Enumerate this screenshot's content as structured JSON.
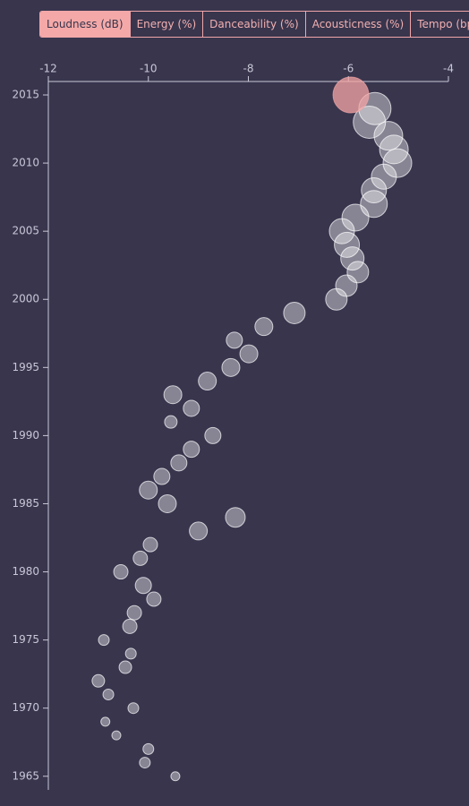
{
  "tabs": [
    "Loudness (dB)",
    "Energy (%)",
    "Danceability (%)",
    "Acousticness (%)",
    "Tempo (bps)"
  ],
  "active_tab": 0,
  "chart_data": {
    "type": "bubble",
    "x": [
      -9.46,
      -10.07,
      -10.0,
      -10.64,
      -10.86,
      -10.3,
      -10.8,
      -11.0,
      -10.46,
      -10.35,
      -10.89,
      -10.37,
      -10.28,
      -9.89,
      -10.1,
      -10.55,
      -10.16,
      -9.96,
      -9.0,
      -8.26,
      -9.62,
      -10.0,
      -9.73,
      -9.39,
      -9.14,
      -8.71,
      -9.55,
      -9.14,
      -9.51,
      -8.82,
      -8.35,
      -7.99,
      -8.28,
      -7.69,
      -7.08,
      -6.24,
      -6.04,
      -5.81,
      -5.92,
      -6.03,
      -6.13,
      -5.86,
      -5.49,
      -5.49,
      -5.29,
      -5.02,
      -5.09,
      -5.2,
      -5.58,
      -5.47,
      -5.95
    ],
    "y": [
      1965,
      1966,
      1967,
      1968,
      1969,
      1970,
      1971,
      1972,
      1973,
      1974,
      1975,
      1976,
      1977,
      1978,
      1979,
      1980,
      1981,
      1982,
      1983,
      1984,
      1985,
      1986,
      1987,
      1988,
      1989,
      1990,
      1991,
      1992,
      1993,
      1994,
      1995,
      1996,
      1997,
      1998,
      1999,
      2000,
      2001,
      2002,
      2003,
      2004,
      2005,
      2006,
      2007,
      2008,
      2009,
      2010,
      2011,
      2012,
      2013,
      2014,
      2015
    ],
    "sizes": [
      5,
      6,
      6,
      5,
      5,
      6,
      6,
      7,
      7,
      6,
      6,
      8,
      8,
      8,
      9,
      8,
      8,
      8,
      10,
      11,
      10,
      10,
      9,
      9,
      9,
      9,
      7,
      9,
      10,
      10,
      10,
      10,
      9,
      10,
      12,
      12,
      12,
      12,
      13,
      14,
      14,
      15,
      15,
      14,
      14,
      16,
      16,
      16,
      18,
      18,
      20
    ],
    "color": "#ffffff",
    "highlight": 2015,
    "highlight_color": "#f4a6a6",
    "xlim": [
      -12,
      -4
    ],
    "xticks": [
      -12,
      -10,
      -8,
      -6,
      -4
    ],
    "ylim": [
      1964,
      2016
    ],
    "yticks": [
      1965,
      1970,
      1975,
      1980,
      1985,
      1990,
      1995,
      2000,
      2005,
      2010,
      2015
    ]
  }
}
